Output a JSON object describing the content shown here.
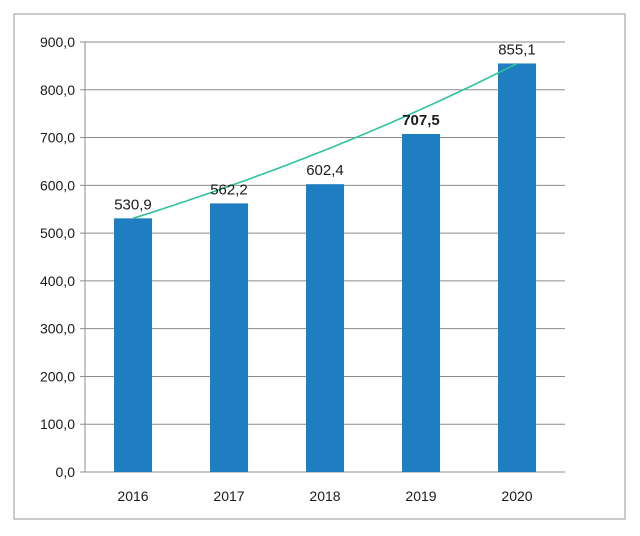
{
  "chart_data": {
    "type": "bar",
    "categories": [
      "2016",
      "2017",
      "2018",
      "2019",
      "2020"
    ],
    "values": [
      530.9,
      562.2,
      602.4,
      707.5,
      855.1
    ],
    "data_labels": [
      "530,9",
      "562,2",
      "602,4",
      "707,5",
      "855,1"
    ],
    "y_tick_labels": [
      "0,0",
      "100,0",
      "200,0",
      "300,0",
      "400,0",
      "500,0",
      "600,0",
      "700,0",
      "800,0",
      "900,0"
    ],
    "ylim": [
      0,
      900
    ],
    "grid": true,
    "legend": "none",
    "trendline": true,
    "colors": {
      "bar": "#1f7ec1",
      "trendline": "#2fc2a0",
      "grid": "#8c8c8c",
      "text": "#1a1a1a",
      "frame": "#9a9a9a"
    }
  }
}
